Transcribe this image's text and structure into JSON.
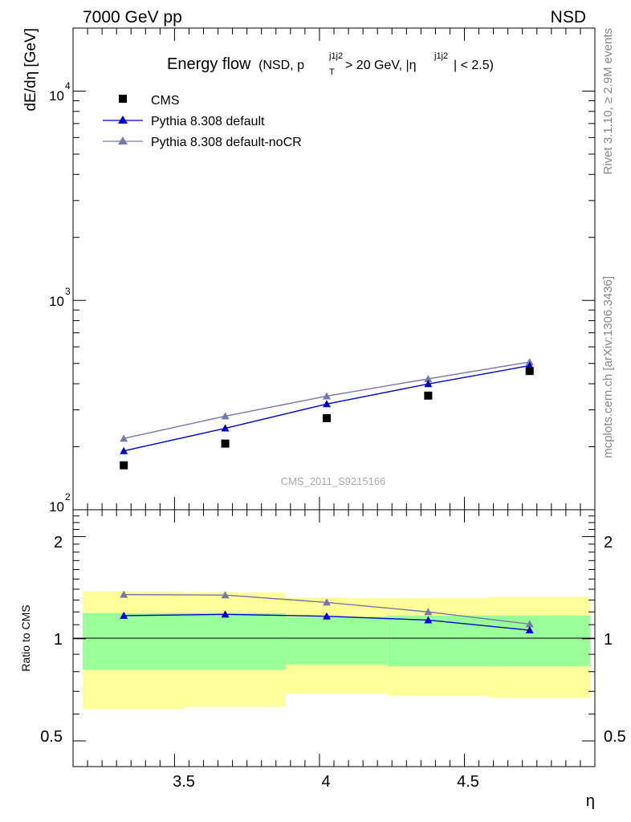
{
  "header": {
    "left": "7000 GeV pp",
    "right": "NSD"
  },
  "side_labels": {
    "rivet": "Rivet 3.1.10, ≥ 2.9M events",
    "mcplots": "mcplots.cern.ch [arXiv:1306.3436]"
  },
  "watermark": "CMS_2011_S9215166",
  "colors": {
    "cms": "#000000",
    "pythia_default": "#0000cc",
    "pythia_nocr": "#7777aa",
    "band_inner": "#99ff99",
    "band_outer": "#ffff99"
  },
  "chart_data": [
    {
      "type": "scatter",
      "title": {
        "main": "Energy flow",
        "paren_open": "(NSD, p",
        "sub_T": "T",
        "sup_1": "j1j2",
        "mid": " > 20 GeV, |η",
        "sup_2": "j1j2",
        "close": "| < 2.5)"
      },
      "ylabel": "dE/dη [GeV]",
      "yscale": "log",
      "ylim": [
        100,
        20000
      ],
      "xlim": [
        3.15,
        4.95
      ],
      "ytick_labels": [
        {
          "base": "10",
          "exp": "2",
          "value": 100
        },
        {
          "base": "10",
          "exp": "3",
          "value": 1000
        },
        {
          "base": "10",
          "exp": "4",
          "value": 10000
        }
      ],
      "legend_position": "top-left",
      "series": [
        {
          "name": "CMS",
          "marker": "square",
          "x": [
            3.325,
            3.675,
            4.025,
            4.375,
            4.725
          ],
          "y": [
            163,
            207,
            274,
            351,
            460
          ],
          "xerr": [
            0.175,
            0.175,
            0.175,
            0.175,
            0.175
          ]
        },
        {
          "name": "Pythia 8.308 default",
          "marker": "triangle",
          "x": [
            3.325,
            3.675,
            4.025,
            4.375,
            4.725
          ],
          "y": [
            191,
            245,
            320,
            399,
            488
          ]
        },
        {
          "name": "Pythia 8.308 default-noCR",
          "marker": "triangle",
          "x": [
            3.325,
            3.675,
            4.025,
            4.375,
            4.725
          ],
          "y": [
            219,
            280,
            349,
            422,
            508
          ]
        }
      ]
    },
    {
      "type": "line",
      "ylabel": "Ratio to CMS",
      "xlabel": "η",
      "yscale": "log",
      "ylim": [
        0.42,
        2.4
      ],
      "xlim": [
        3.15,
        4.95
      ],
      "xticks": [
        3.5,
        4,
        4.5
      ],
      "xtick_labels": [
        "3.5",
        "4",
        "4.5"
      ],
      "yticks": [
        0.5,
        1,
        2
      ],
      "ytick_labels": [
        "0.5",
        "1",
        "2"
      ],
      "bands": [
        {
          "x0": 3.15,
          "x1": 3.5,
          "inner": [
            0.81,
            1.19
          ],
          "outer": [
            0.62,
            1.38
          ]
        },
        {
          "x0": 3.5,
          "x1": 3.85,
          "inner": [
            0.81,
            1.19
          ],
          "outer": [
            0.63,
            1.37
          ]
        },
        {
          "x0": 3.85,
          "x1": 4.2,
          "inner": [
            0.84,
            1.16
          ],
          "outer": [
            0.69,
            1.32
          ]
        },
        {
          "x0": 4.2,
          "x1": 4.55,
          "inner": [
            0.83,
            1.17
          ],
          "outer": [
            0.68,
            1.32
          ]
        },
        {
          "x0": 4.55,
          "x1": 4.9,
          "inner": [
            0.83,
            1.17
          ],
          "outer": [
            0.67,
            1.33
          ]
        }
      ],
      "series": [
        {
          "name": "Pythia 8.308 default",
          "x": [
            3.325,
            3.675,
            4.025,
            4.375,
            4.725
          ],
          "y": [
            1.17,
            1.18,
            1.165,
            1.135,
            1.06
          ]
        },
        {
          "name": "Pythia 8.308 default-noCR",
          "x": [
            3.325,
            3.675,
            4.025,
            4.375,
            4.725
          ],
          "y": [
            1.35,
            1.345,
            1.28,
            1.2,
            1.105
          ]
        }
      ]
    }
  ]
}
